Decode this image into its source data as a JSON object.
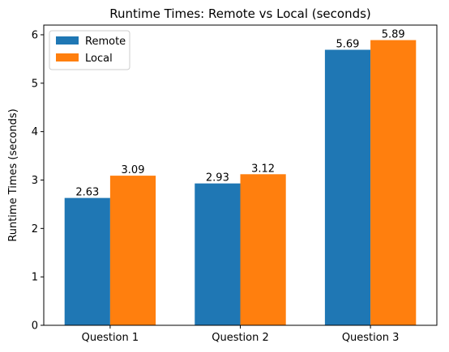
{
  "chart_data": {
    "type": "bar",
    "title": "Runtime Times: Remote vs Local (seconds)",
    "xlabel": "",
    "ylabel": "Runtime Times (seconds)",
    "categories": [
      "Question 1",
      "Question 2",
      "Question 3"
    ],
    "series": [
      {
        "name": "Remote",
        "color": "#1f77b4",
        "values": [
          2.63,
          2.93,
          5.69
        ],
        "labels": [
          "2.63",
          "2.93",
          "5.69"
        ]
      },
      {
        "name": "Local",
        "color": "#ff7f0e",
        "values": [
          3.09,
          3.12,
          5.89
        ],
        "labels": [
          "3.09",
          "3.12",
          "5.89"
        ]
      }
    ],
    "ylim": [
      0,
      6.2
    ],
    "yticks": [
      0,
      1,
      2,
      3,
      4,
      5,
      6
    ],
    "ytick_labels": [
      "0",
      "1",
      "2",
      "3",
      "4",
      "5",
      "6"
    ],
    "grid": false,
    "legend_position": "top-left"
  }
}
